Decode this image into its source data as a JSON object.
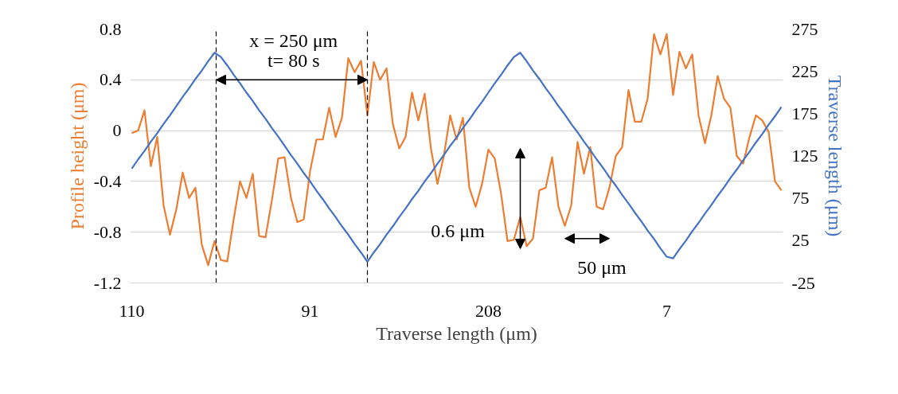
{
  "chart_data": {
    "type": "line",
    "xlabel": "Traverse length (μm)",
    "ylabel": "Profile height (μm)",
    "y2label": "Traverse length (μm)",
    "categories": [
      "110",
      null,
      null,
      null,
      null,
      null,
      null,
      null,
      null,
      null,
      null,
      null,
      null,
      null,
      null,
      null,
      null,
      null,
      null,
      null,
      null,
      null,
      null,
      null,
      null,
      null,
      null,
      null,
      "91",
      null,
      null,
      null,
      null,
      null,
      null,
      null,
      null,
      null,
      null,
      null,
      null,
      null,
      null,
      null,
      null,
      null,
      null,
      null,
      null,
      null,
      null,
      null,
      null,
      null,
      null,
      null,
      "208",
      null,
      null,
      null,
      null,
      null,
      null,
      null,
      null,
      null,
      null,
      null,
      null,
      null,
      null,
      null,
      null,
      null,
      null,
      null,
      null,
      null,
      null,
      null,
      null,
      null,
      null,
      null,
      "7",
      null,
      null,
      null,
      null,
      null,
      null,
      null,
      null,
      null,
      null,
      null,
      null,
      null,
      null,
      null,
      null,
      null,
      null
    ],
    "ylim": [
      -1.2,
      0.8
    ],
    "yticks": [
      -1.2,
      -0.8,
      -0.4,
      0,
      0.4,
      0.8
    ],
    "y2lim": [
      -25,
      275
    ],
    "y2ticks": [
      -25,
      25,
      75,
      125,
      175,
      225,
      275
    ],
    "grid": "y",
    "line_style": "solid",
    "series": [
      {
        "color": "#ed7d31",
        "values": [
          -0.02,
          0.0,
          0.16,
          -0.28,
          -0.05,
          -0.59,
          -0.82,
          -0.62,
          -0.33,
          -0.53,
          -0.45,
          -0.9,
          -1.06,
          -0.87,
          -1.02,
          -1.03,
          -0.7,
          -0.4,
          -0.53,
          -0.34,
          -0.83,
          -0.84,
          -0.55,
          -0.22,
          -0.21,
          -0.53,
          -0.72,
          -0.7,
          -0.32,
          -0.07,
          -0.07,
          0.18,
          -0.05,
          0.1,
          0.57,
          0.46,
          0.55,
          0.12,
          0.54,
          0.4,
          0.49,
          0.05,
          -0.14,
          -0.05,
          0.3,
          0.08,
          0.29,
          -0.15,
          -0.42,
          -0.2,
          0.12,
          -0.07,
          0.1,
          -0.45,
          -0.6,
          -0.42,
          -0.15,
          -0.22,
          -0.5,
          -0.87,
          -0.86,
          -0.68,
          -0.91,
          -0.85,
          -0.47,
          -0.45,
          -0.21,
          -0.6,
          -0.75,
          -0.59,
          -0.09,
          -0.34,
          -0.13,
          -0.6,
          -0.62,
          -0.45,
          -0.2,
          -0.13,
          0.32,
          0.07,
          0.07,
          0.25,
          0.76,
          0.6,
          0.76,
          0.28,
          0.62,
          0.49,
          0.6,
          0.12,
          -0.1,
          0.12,
          0.43,
          0.25,
          0.18,
          -0.2,
          -0.26,
          -0.05,
          0.12,
          0.08,
          -0.01,
          -0.4,
          -0.47
        ]
      },
      {
        "color": "#4472c4",
        "axis": "y2",
        "values": [
          110,
          121,
          131,
          142,
          152,
          163,
          173,
          184,
          195,
          205,
          216,
          226,
          237,
          247,
          242,
          232,
          221,
          211,
          200,
          190,
          179,
          169,
          158,
          148,
          137,
          126,
          116,
          105,
          95,
          84,
          74,
          63,
          53,
          42,
          32,
          21,
          11,
          0,
          11,
          21,
          32,
          42,
          53,
          63,
          74,
          84,
          95,
          105,
          116,
          126,
          137,
          147,
          158,
          168,
          179,
          189,
          200,
          211,
          221,
          232,
          242,
          247,
          237,
          226,
          216,
          205,
          195,
          184,
          174,
          163,
          153,
          142,
          132,
          121,
          111,
          100,
          90,
          79,
          69,
          58,
          48,
          37,
          27,
          16,
          6,
          4,
          15,
          25,
          36,
          46,
          57,
          67,
          78,
          88,
          99,
          109,
          120,
          130,
          141,
          151,
          162,
          172,
          183
        ]
      }
    ],
    "annotations": [
      "x = 250 μm",
      "t= 80 s",
      "0.6 μm",
      "50 μm"
    ]
  }
}
